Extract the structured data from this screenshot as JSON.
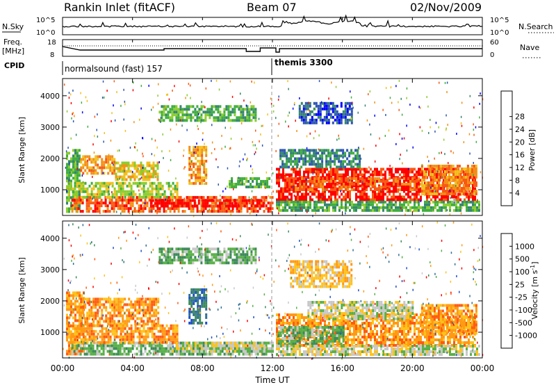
{
  "header": {
    "station": "Rankin Inlet (fitACF)",
    "beam": "Beam 07",
    "date": "02/Nov/2009"
  },
  "noise_panel": {
    "left_label": "N.Sky",
    "left_ticks": [
      "10^5",
      "10^0"
    ],
    "right_label": "N.Search",
    "right_ticks": [
      "10^5",
      "10^0"
    ]
  },
  "freq_panel": {
    "left_label_top": "Freq.",
    "left_label_unit": "[MHz]",
    "left_ticks": [
      "18",
      "8"
    ],
    "right_label": "Nave",
    "right_ticks": [
      "60",
      "0"
    ]
  },
  "cpid_panel": {
    "label": "CPID",
    "modes": [
      {
        "name": "normalsound (fast) 157",
        "start_hour": 0,
        "end_hour": 12
      },
      {
        "name": "themis 3300",
        "start_hour": 12,
        "end_hour": 24
      }
    ]
  },
  "chart_data": [
    {
      "type": "heatmap",
      "title": "",
      "xlabel": "Time UT",
      "ylabel": "Slant Range [km]",
      "x_ticks": [
        "00:00",
        "04:00",
        "08:00",
        "12:00",
        "16:00",
        "20:00",
        "00:00"
      ],
      "xlim_hours": [
        0,
        24
      ],
      "y_ticks": [
        "1000",
        "2000",
        "3000",
        "4000"
      ],
      "ylim_km": [
        180,
        4550
      ],
      "colorbar": {
        "label": "Power [dB]",
        "ticks": [
          "4",
          "8",
          "12",
          "16",
          "20",
          "24",
          "28"
        ],
        "colors": [
          "#0000ff",
          "#2e55b4",
          "#35866e",
          "#3fae3f",
          "#8ccd2e",
          "#f0c21f",
          "#f39117",
          "#f85a14",
          "#ff0000"
        ]
      },
      "regions": [
        {
          "t0": 0.2,
          "t1": 1.0,
          "r0": 300,
          "r1": 2300,
          "c": 3
        },
        {
          "t0": 1.0,
          "t1": 3.0,
          "r0": 1500,
          "r1": 2100,
          "c": 6
        },
        {
          "t0": 3.0,
          "t1": 5.5,
          "r0": 1300,
          "r1": 1900,
          "c": 5
        },
        {
          "t0": 0.5,
          "t1": 12.0,
          "r0": 300,
          "r1": 800,
          "c": 7
        },
        {
          "t0": 0.3,
          "t1": 6.5,
          "r0": 800,
          "r1": 1250,
          "c": 4
        },
        {
          "t0": 5.0,
          "t1": 11.5,
          "r0": 450,
          "r1": 700,
          "c": 8
        },
        {
          "t0": 7.2,
          "t1": 8.2,
          "r0": 1200,
          "r1": 2400,
          "c": 6
        },
        {
          "t0": 9.5,
          "t1": 11.8,
          "r0": 1100,
          "r1": 1400,
          "c": 3
        },
        {
          "t0": 12.2,
          "t1": 23.6,
          "r0": 700,
          "r1": 1700,
          "c": 8
        },
        {
          "t0": 12.8,
          "t1": 20.5,
          "r0": 1000,
          "r1": 1400,
          "c": 7
        },
        {
          "t0": 20.5,
          "t1": 23.6,
          "r0": 900,
          "r1": 1800,
          "c": 6
        },
        {
          "t0": 12.2,
          "t1": 23.8,
          "r0": 300,
          "r1": 650,
          "c": 3
        },
        {
          "t0": 12.4,
          "t1": 17.0,
          "r0": 1700,
          "r1": 2300,
          "c": 2
        },
        {
          "t0": 13.5,
          "t1": 16.5,
          "r0": 3100,
          "r1": 3800,
          "c": 1
        },
        {
          "t0": 5.5,
          "t1": 11.0,
          "r0": 3200,
          "r1": 3700,
          "c": 3
        }
      ]
    },
    {
      "type": "heatmap",
      "title": "",
      "xlabel": "Time UT",
      "ylabel": "Slant Range [km]",
      "x_ticks": [
        "00:00",
        "04:00",
        "08:00",
        "12:00",
        "16:00",
        "20:00",
        "00:00"
      ],
      "xlim_hours": [
        0,
        24
      ],
      "y_ticks": [
        "1000",
        "2000",
        "3000",
        "4000"
      ],
      "ylim_km": [
        180,
        4550
      ],
      "colorbar": {
        "label": "Velocity [m s^-1]",
        "ticks": [
          "1000",
          "500",
          "100",
          "25",
          "-25",
          "-100",
          "-500",
          "-1000"
        ],
        "colors": [
          "#1e50c8",
          "#2f6f96",
          "#3c8a5a",
          "#58b046",
          "#c8c8c8",
          "#ffc21a",
          "#ff9a14",
          "#ff5a14",
          "#ff0000"
        ]
      },
      "regions": [
        {
          "t0": 0.2,
          "t1": 1.2,
          "r0": 300,
          "r1": 2300,
          "c": 6
        },
        {
          "t0": 1.0,
          "t1": 5.5,
          "r0": 1300,
          "r1": 2100,
          "c": 6
        },
        {
          "t0": 0.5,
          "t1": 12.0,
          "r0": 300,
          "r1": 700,
          "c": 3
        },
        {
          "t0": 0.3,
          "t1": 6.5,
          "r0": 700,
          "r1": 1250,
          "c": 6
        },
        {
          "t0": 6.0,
          "t1": 12.0,
          "r0": 350,
          "r1": 700,
          "c": 4
        },
        {
          "t0": 7.2,
          "t1": 8.2,
          "r0": 1300,
          "r1": 2400,
          "c": 1
        },
        {
          "t0": 12.2,
          "t1": 23.6,
          "r0": 600,
          "r1": 1600,
          "c": 6
        },
        {
          "t0": 12.3,
          "t1": 16.0,
          "r0": 600,
          "r1": 1200,
          "c": 3
        },
        {
          "t0": 14.0,
          "t1": 20.0,
          "r0": 1400,
          "r1": 2000,
          "c": 4
        },
        {
          "t0": 20.5,
          "t1": 23.6,
          "r0": 1000,
          "r1": 1900,
          "c": 6
        },
        {
          "t0": 12.2,
          "t1": 23.8,
          "r0": 300,
          "r1": 600,
          "c": 4
        },
        {
          "t0": 5.5,
          "t1": 11.0,
          "r0": 3200,
          "r1": 3700,
          "c": 3
        },
        {
          "t0": 13.0,
          "t1": 16.5,
          "r0": 2500,
          "r1": 3300,
          "c": 5
        }
      ]
    }
  ]
}
